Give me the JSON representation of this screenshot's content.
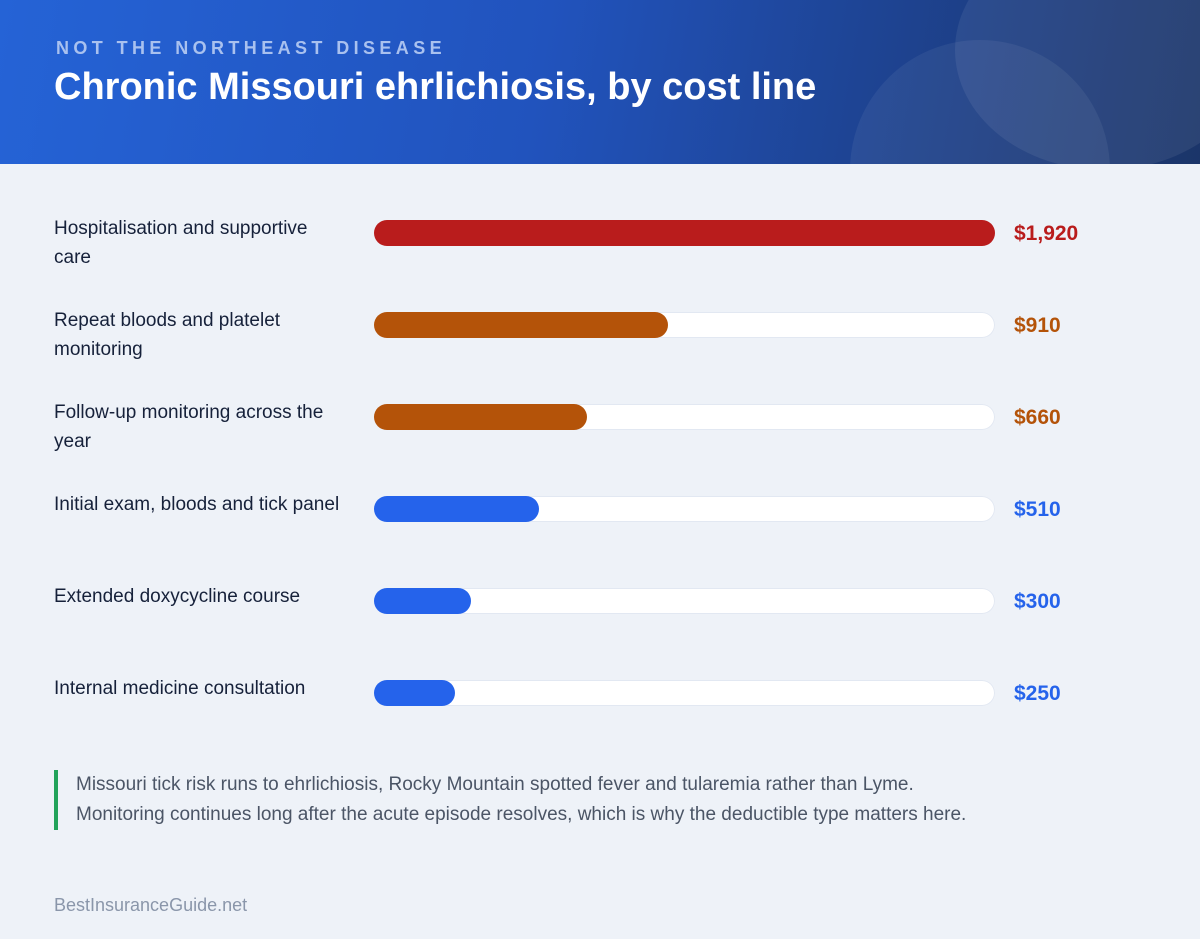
{
  "header": {
    "kicker": "NOT THE NORTHEAST DISEASE",
    "title": "Chronic Missouri ehrlichiosis, by cost line"
  },
  "chart_data": {
    "type": "bar",
    "orientation": "horizontal",
    "title": "Chronic Missouri ehrlichiosis, by cost line",
    "xlim": [
      0,
      1920
    ],
    "categories": [
      "Hospitalisation and supportive care",
      "Repeat bloods and platelet monitoring",
      "Follow-up monitoring across the year",
      "Initial exam, bloods and tick panel",
      "Extended doxycycline course",
      "Internal medicine consultation"
    ],
    "values": [
      1920,
      910,
      660,
      510,
      300,
      250
    ],
    "value_labels": [
      "$1,920",
      "$910",
      "$660",
      "$510",
      "$300",
      "$250"
    ],
    "colors": [
      "#b91c1c",
      "#b45309",
      "#b45309",
      "#2563eb",
      "#2563eb",
      "#2563eb"
    ],
    "track_color": "#ffffff",
    "grid": false,
    "legend": "none"
  },
  "note": {
    "text": "Missouri tick risk runs to ehrlichiosis, Rocky Mountain spotted fever and tularemia rather than Lyme. Monitoring continues long after the acute episode resolves, which is why the deductible type matters here.",
    "accent_color": "#22a35a"
  },
  "footer": {
    "source": "BestInsuranceGuide.net"
  }
}
